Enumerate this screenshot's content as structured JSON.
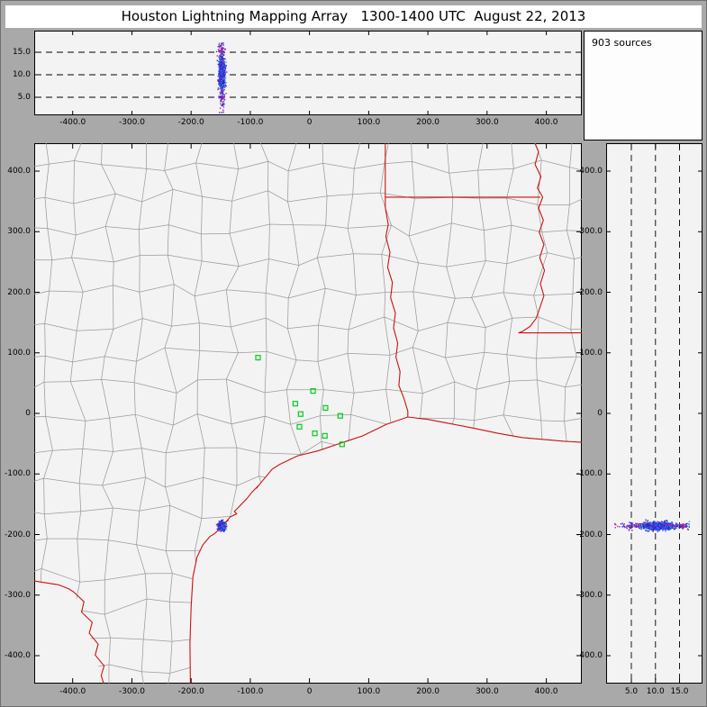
{
  "window": {
    "title": "Houston Lightning Mapping Array   1300-1400 UTC  August 22, 2013"
  },
  "sources_panel": {
    "label": "903 sources",
    "count": 903
  },
  "palette": {
    "frame_bg": "#a9a9a9",
    "titlebar_bg": "#ffffff",
    "panel_bg": "#f3f3f3",
    "sources_bg": "#fdfdfd",
    "county_line": "#9b9b9b",
    "state_border": "#cc1111",
    "station_marker": "#00cc22",
    "point_colors": [
      "#1f2fd4",
      "#2b46e8",
      "#0b2fbb",
      "#3a6cf0",
      "#15a0d8",
      "#7a15cc",
      "#b21fb2",
      "#cc2255"
    ],
    "point_weights": [
      0.25,
      0.2,
      0.15,
      0.15,
      0.08,
      0.09,
      0.05,
      0.03
    ]
  },
  "axes": {
    "ew_ticks": {
      "values": [
        -400,
        -300,
        -200,
        -100,
        0,
        100,
        200,
        300,
        400
      ],
      "labels": [
        "-400.0",
        "-300.0",
        "-200.0",
        "-100.0",
        "0",
        "100.0",
        "200.0",
        "300.0",
        "400.0"
      ]
    },
    "ns_ticks": {
      "values": [
        400,
        300,
        200,
        100,
        0,
        -100,
        -200,
        -300,
        -400
      ],
      "labels": [
        "400.0",
        "300.0",
        "200.0",
        "100.0",
        "0",
        "-100.0",
        "-200.0",
        "-300.0",
        "-400.0"
      ]
    },
    "alt_ticks": {
      "values": [
        5,
        10,
        15
      ],
      "labels": [
        "5.0",
        "10.0",
        "15.0"
      ]
    }
  },
  "chart_data": [
    {
      "type": "scatter",
      "name": "altitude-vs-east-west",
      "xlim": [
        -465,
        460
      ],
      "ylim": [
        1,
        19.8
      ],
      "grid_y": [
        5,
        10,
        15
      ],
      "cluster": {
        "count": 903,
        "x_mean": -148,
        "x_sd": 2.6,
        "alt_mean": 10.4,
        "alt_sd": 2.0,
        "alt_range": [
          1.6,
          17.4
        ]
      }
    },
    {
      "type": "scatter",
      "name": "plan-view-map",
      "xlim": [
        -465,
        460
      ],
      "ylim": [
        -446,
        446
      ],
      "cluster": {
        "count": 903,
        "x_mean": -148,
        "x_sd": 2.6,
        "y_mean": -186,
        "y_sd": 3.2
      },
      "stations": [
        [
          -87,
          92
        ],
        [
          6,
          37
        ],
        [
          -24,
          16
        ],
        [
          27,
          9
        ],
        [
          -15,
          -1
        ],
        [
          52,
          -4
        ],
        [
          -17,
          -22
        ],
        [
          9,
          -33
        ],
        [
          26,
          -37
        ],
        [
          55,
          -51
        ]
      ]
    },
    {
      "type": "scatter",
      "name": "altitude-vs-north-south",
      "xlim": [
        -0.2,
        19.8
      ],
      "ylim": [
        -446,
        446
      ],
      "grid_x": [
        5,
        10,
        15
      ],
      "cluster": {
        "count": 903,
        "alt_mean": 10.4,
        "alt_sd": 2.0,
        "y_mean": -186,
        "y_sd": 3.2
      }
    }
  ],
  "map_geometry": {
    "state_borders": [
      [
        [
          465,
          -48
        ],
        [
          430,
          -46
        ],
        [
          395,
          -43
        ],
        [
          360,
          -40
        ],
        [
          319,
          -33
        ],
        [
          280,
          -25
        ],
        [
          243,
          -18
        ],
        [
          200,
          -10
        ],
        [
          166,
          -6
        ],
        [
          130,
          -18
        ],
        [
          90,
          -37
        ],
        [
          50,
          -50
        ],
        [
          14,
          -62
        ],
        [
          -20,
          -70
        ],
        [
          -50,
          -84
        ],
        [
          -63,
          -92
        ],
        [
          -80,
          -112
        ],
        [
          -90,
          -124
        ],
        [
          -86,
          -119
        ],
        [
          -98,
          -131
        ],
        [
          -106,
          -141
        ],
        [
          -120,
          -155
        ],
        [
          -127,
          -162
        ],
        [
          -123,
          -166
        ],
        [
          -134,
          -171
        ],
        [
          -142,
          -180
        ],
        [
          -137,
          -176
        ],
        [
          -148,
          -186
        ],
        [
          -156,
          -194
        ],
        [
          -151,
          -190
        ],
        [
          -161,
          -199
        ],
        [
          -168,
          -203
        ],
        [
          -180,
          -217
        ],
        [
          -190,
          -237
        ],
        [
          -197,
          -270
        ],
        [
          -200,
          -320
        ],
        [
          -202,
          -380
        ],
        [
          -201,
          -456
        ]
      ],
      [
        [
          -344,
          -456
        ],
        [
          -352,
          -433
        ],
        [
          -347,
          -417
        ],
        [
          -362,
          -399
        ],
        [
          -357,
          -381
        ],
        [
          -372,
          -363
        ],
        [
          -367,
          -345
        ],
        [
          -385,
          -328
        ],
        [
          -381,
          -311
        ],
        [
          -398,
          -295
        ],
        [
          -406,
          -290
        ],
        [
          -424,
          -283
        ],
        [
          -470,
          -276
        ]
      ],
      [
        [
          128,
          452
        ],
        [
          128,
          340
        ],
        [
          133,
          312
        ],
        [
          129,
          292
        ],
        [
          136,
          266
        ],
        [
          132,
          241
        ],
        [
          140,
          216
        ],
        [
          137,
          191
        ],
        [
          145,
          166
        ],
        [
          142,
          141
        ],
        [
          149,
          116
        ],
        [
          146,
          93
        ],
        [
          153,
          69
        ],
        [
          151,
          46
        ],
        [
          159,
          26
        ],
        [
          166,
          4
        ],
        [
          166,
          -6
        ]
      ],
      [
        [
          128,
          357
        ],
        [
          390,
          357
        ]
      ],
      [
        [
          378,
          452
        ],
        [
          387,
          432
        ],
        [
          381,
          411
        ],
        [
          391,
          391
        ],
        [
          385,
          372
        ],
        [
          394,
          357
        ],
        [
          387,
          339
        ],
        [
          395,
          319
        ],
        [
          388,
          299
        ],
        [
          396,
          279
        ],
        [
          389,
          257
        ],
        [
          397,
          236
        ],
        [
          390,
          214
        ],
        [
          396,
          194
        ],
        [
          389,
          174
        ],
        [
          383,
          157
        ],
        [
          373,
          144
        ],
        [
          361,
          136
        ],
        [
          353,
          133
        ]
      ],
      [
        [
          353,
          133
        ],
        [
          470,
          133
        ]
      ]
    ],
    "land_polygon": [
      [
        -480,
        460
      ],
      [
        480,
        460
      ],
      [
        480,
        -48
      ],
      [
        430,
        -46
      ],
      [
        395,
        -43
      ],
      [
        360,
        -40
      ],
      [
        319,
        -33
      ],
      [
        280,
        -25
      ],
      [
        243,
        -18
      ],
      [
        200,
        -10
      ],
      [
        166,
        -6
      ],
      [
        130,
        -18
      ],
      [
        90,
        -37
      ],
      [
        50,
        -50
      ],
      [
        14,
        -62
      ],
      [
        -20,
        -70
      ],
      [
        -63,
        -92
      ],
      [
        -90,
        -124
      ],
      [
        -106,
        -141
      ],
      [
        -127,
        -162
      ],
      [
        -142,
        -180
      ],
      [
        -156,
        -194
      ],
      [
        -168,
        -203
      ],
      [
        -180,
        -217
      ],
      [
        -190,
        -237
      ],
      [
        -197,
        -270
      ],
      [
        -200,
        -320
      ],
      [
        -202,
        -380
      ],
      [
        -201,
        -460
      ],
      [
        -344,
        -460
      ],
      [
        -352,
        -433
      ],
      [
        -362,
        -399
      ],
      [
        -372,
        -363
      ],
      [
        -385,
        -328
      ],
      [
        -398,
        -295
      ],
      [
        -424,
        -283
      ],
      [
        -480,
        -276
      ]
    ],
    "county_grid": {
      "seed": 77,
      "spacing": 52,
      "jitter": 13
    }
  },
  "rng_seed": 903
}
